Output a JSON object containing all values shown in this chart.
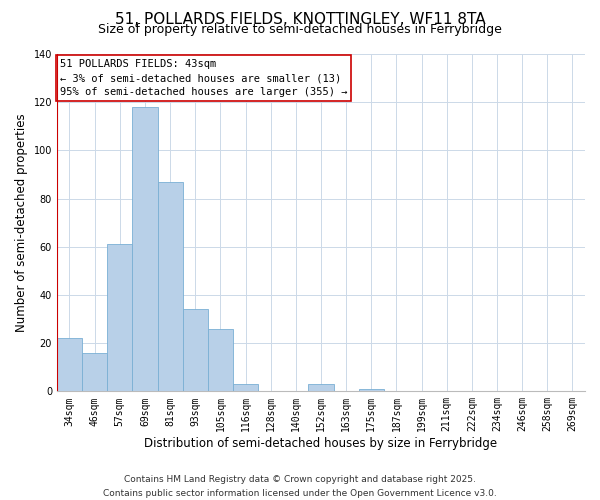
{
  "title": "51, POLLARDS FIELDS, KNOTTINGLEY, WF11 8TA",
  "subtitle": "Size of property relative to semi-detached houses in Ferrybridge",
  "xlabel": "Distribution of semi-detached houses by size in Ferrybridge",
  "ylabel": "Number of semi-detached properties",
  "categories": [
    "34sqm",
    "46sqm",
    "57sqm",
    "69sqm",
    "81sqm",
    "93sqm",
    "105sqm",
    "116sqm",
    "128sqm",
    "140sqm",
    "152sqm",
    "163sqm",
    "175sqm",
    "187sqm",
    "199sqm",
    "211sqm",
    "222sqm",
    "234sqm",
    "246sqm",
    "258sqm",
    "269sqm"
  ],
  "bar_heights": [
    22,
    16,
    61,
    118,
    87,
    34,
    26,
    3,
    0,
    0,
    3,
    0,
    1,
    0,
    0,
    0,
    0,
    0,
    0,
    0,
    0
  ],
  "bar_color": "#b8d0e8",
  "bar_edge_color": "#7aafd4",
  "highlight_line_color": "#cc0000",
  "annotation_title": "51 POLLARDS FIELDS: 43sqm",
  "annotation_line1": "← 3% of semi-detached houses are smaller (13)",
  "annotation_line2": "95% of semi-detached houses are larger (355) →",
  "annotation_box_edge": "#cc0000",
  "ylim": [
    0,
    140
  ],
  "yticks": [
    0,
    20,
    40,
    60,
    80,
    100,
    120,
    140
  ],
  "footer1": "Contains HM Land Registry data © Crown copyright and database right 2025.",
  "footer2": "Contains public sector information licensed under the Open Government Licence v3.0.",
  "bg_color": "#ffffff",
  "grid_color": "#ccd9e8",
  "title_fontsize": 11,
  "subtitle_fontsize": 9,
  "axis_label_fontsize": 8.5,
  "tick_fontsize": 7,
  "annotation_fontsize": 7.5,
  "footer_fontsize": 6.5
}
